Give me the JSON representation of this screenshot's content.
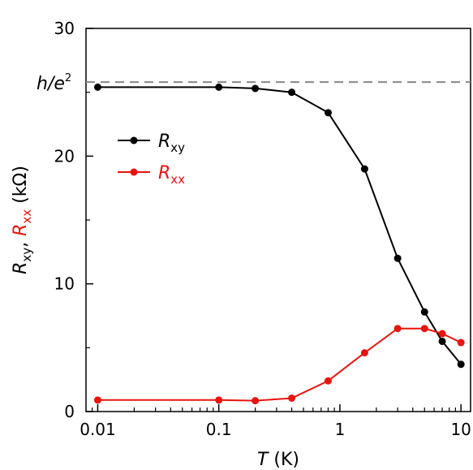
{
  "chart_data": {
    "type": "line",
    "x_scale": "log",
    "xlim": [
      0.008,
      12
    ],
    "ylim": [
      0,
      30
    ],
    "x_ticks": [
      {
        "value": 0.01,
        "label": "0.01"
      },
      {
        "value": 0.1,
        "label": "0.1"
      },
      {
        "value": 1,
        "label": "1"
      },
      {
        "value": 10,
        "label": "10"
      }
    ],
    "y_ticks": [
      {
        "value": 0,
        "label": "0"
      },
      {
        "value": 10,
        "label": "10"
      },
      {
        "value": 20,
        "label": "20"
      },
      {
        "value": 30,
        "label": "30"
      }
    ],
    "xlabel": {
      "var": "T",
      "unit": " (K)"
    },
    "ylabel": {
      "part1": "R",
      "sub1": "xy",
      "comma": ", ",
      "part2": "R",
      "sub2": "xx",
      "unit": " (kΩ)"
    },
    "reference_line": {
      "value": 25.8,
      "label_main": "h/e",
      "label_sup": "2",
      "color": "#888888",
      "style": "dashed"
    },
    "legend_position": "upper-left",
    "grid": false,
    "series": [
      {
        "name_main": "R",
        "name_sub": "xy",
        "color": "#000000",
        "x": [
          0.01,
          0.1,
          0.2,
          0.4,
          0.8,
          1.6,
          3,
          5,
          7,
          10
        ],
        "y": [
          25.4,
          25.4,
          25.3,
          25.0,
          23.4,
          19.0,
          12.0,
          7.8,
          5.5,
          3.7
        ]
      },
      {
        "name_main": "R",
        "name_sub": "xx",
        "color": "#e8140e",
        "x": [
          0.01,
          0.1,
          0.2,
          0.4,
          0.8,
          1.6,
          3,
          5,
          7,
          10
        ],
        "y": [
          0.9,
          0.9,
          0.85,
          1.05,
          2.4,
          4.6,
          6.5,
          6.5,
          6.1,
          5.4
        ]
      }
    ]
  }
}
